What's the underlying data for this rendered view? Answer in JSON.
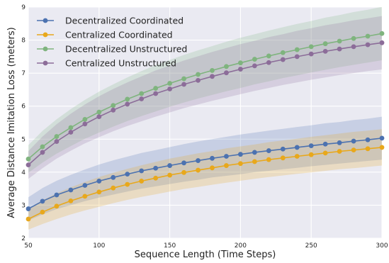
{
  "chart_data": {
    "type": "line",
    "title": "",
    "xlabel": "Sequence Length (Time Steps)",
    "ylabel": "Average Distance Imitation Loss (meters)",
    "xlim": [
      50,
      300
    ],
    "ylim": [
      2,
      9
    ],
    "x_ticks": [
      50,
      100,
      150,
      200,
      250,
      300
    ],
    "y_ticks": [
      2,
      3,
      4,
      5,
      6,
      7,
      8,
      9
    ],
    "grid": true,
    "legend_position": "top-left",
    "x": [
      50,
      60,
      70,
      80,
      90,
      100,
      110,
      120,
      130,
      140,
      150,
      160,
      170,
      180,
      190,
      200,
      210,
      220,
      230,
      240,
      250,
      260,
      270,
      280,
      290,
      300
    ],
    "series": [
      {
        "name": "Decentralized Coordinated",
        "color": "#4c72b0",
        "values": [
          2.89,
          3.12,
          3.31,
          3.46,
          3.6,
          3.73,
          3.84,
          3.94,
          4.04,
          4.12,
          4.2,
          4.28,
          4.35,
          4.42,
          4.48,
          4.54,
          4.6,
          4.65,
          4.7,
          4.75,
          4.8,
          4.85,
          4.89,
          4.94,
          4.98,
          5.03
        ],
        "band": [
          0.35,
          0.4,
          0.43,
          0.46,
          0.48,
          0.5,
          0.52,
          0.53,
          0.54,
          0.55,
          0.56,
          0.57,
          0.58,
          0.58,
          0.59,
          0.6,
          0.6,
          0.61,
          0.61,
          0.62,
          0.62,
          0.63,
          0.63,
          0.64,
          0.64,
          0.65
        ]
      },
      {
        "name": "Centralized Coordinated",
        "color": "#e8a81c",
        "values": [
          2.58,
          2.79,
          2.97,
          3.13,
          3.27,
          3.4,
          3.52,
          3.63,
          3.73,
          3.82,
          3.91,
          3.99,
          4.06,
          4.13,
          4.2,
          4.26,
          4.32,
          4.38,
          4.43,
          4.48,
          4.53,
          4.58,
          4.63,
          4.67,
          4.71,
          4.75
        ],
        "band": [
          0.32,
          0.36,
          0.39,
          0.41,
          0.43,
          0.45,
          0.46,
          0.47,
          0.48,
          0.49,
          0.5,
          0.5,
          0.51,
          0.51,
          0.52,
          0.52,
          0.52,
          0.53,
          0.53,
          0.53,
          0.54,
          0.54,
          0.54,
          0.55,
          0.55,
          0.55
        ]
      },
      {
        "name": "Decentralized Unstructured",
        "color": "#7fb47e",
        "values": [
          4.4,
          4.77,
          5.08,
          5.35,
          5.6,
          5.82,
          6.02,
          6.21,
          6.38,
          6.54,
          6.69,
          6.83,
          6.96,
          7.08,
          7.2,
          7.31,
          7.42,
          7.52,
          7.62,
          7.71,
          7.8,
          7.89,
          7.97,
          8.05,
          8.12,
          8.2
        ],
        "band": [
          0.42,
          0.48,
          0.52,
          0.56,
          0.59,
          0.62,
          0.64,
          0.66,
          0.68,
          0.7,
          0.71,
          0.72,
          0.73,
          0.74,
          0.75,
          0.76,
          0.76,
          0.77,
          0.77,
          0.78,
          0.78,
          0.79,
          0.79,
          0.8,
          0.8,
          0.81
        ]
      },
      {
        "name": "Centralized Unstructured",
        "color": "#8c6d99",
        "values": [
          4.22,
          4.6,
          4.93,
          5.21,
          5.46,
          5.68,
          5.88,
          6.06,
          6.22,
          6.38,
          6.52,
          6.66,
          6.78,
          6.9,
          7.01,
          7.12,
          7.22,
          7.32,
          7.41,
          7.5,
          7.58,
          7.66,
          7.73,
          7.8,
          7.86,
          7.92
        ],
        "band": [
          0.42,
          0.48,
          0.52,
          0.56,
          0.59,
          0.62,
          0.64,
          0.66,
          0.68,
          0.7,
          0.71,
          0.72,
          0.73,
          0.74,
          0.75,
          0.76,
          0.76,
          0.77,
          0.77,
          0.78,
          0.78,
          0.79,
          0.79,
          0.8,
          0.8,
          0.81
        ]
      }
    ]
  }
}
